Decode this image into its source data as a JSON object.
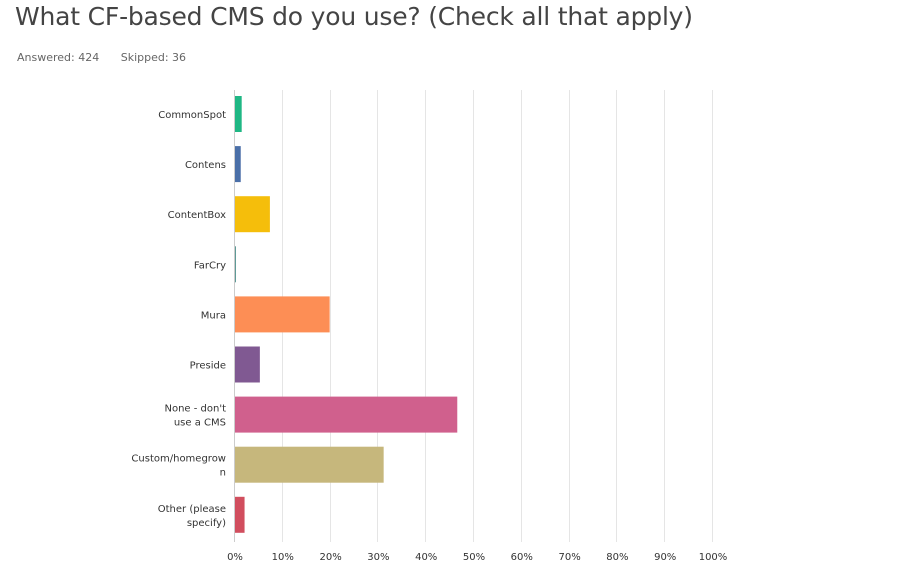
{
  "survey": {
    "title": "What CF-based CMS do you use? (Check all that apply)",
    "answered": "Answered: 424",
    "skipped": "Skipped: 36"
  },
  "chart_data": {
    "type": "bar",
    "orientation": "horizontal",
    "categories": [
      [
        "CommonSpot"
      ],
      [
        "Contens"
      ],
      [
        "ContentBox"
      ],
      [
        "FarCry"
      ],
      [
        "Mura"
      ],
      [
        "Preside"
      ],
      [
        "None - don't",
        "use a CMS"
      ],
      [
        "Custom/homegrow",
        "n"
      ],
      [
        "Other (please",
        "specify)"
      ]
    ],
    "values": [
      1.4,
      1.2,
      7.3,
      0.2,
      19.8,
      5.2,
      46.5,
      31.1,
      2.0
    ],
    "colors": [
      "#1fb784",
      "#4a6fa8",
      "#f5be0b",
      "#5f9a96",
      "#fd8e55",
      "#805992",
      "#d0608d",
      "#c6b77c",
      "#d14e5e"
    ],
    "xlim": [
      0,
      100
    ],
    "ticks": [
      0,
      10,
      20,
      30,
      40,
      50,
      60,
      70,
      80,
      90,
      100
    ],
    "tick_labels": [
      "0%",
      "10%",
      "20%",
      "30%",
      "40%",
      "50%",
      "60%",
      "70%",
      "80%",
      "90%",
      "100%"
    ],
    "grid": true,
    "grid_color": "#e5e5e5",
    "xlabel": "",
    "ylabel": ""
  }
}
